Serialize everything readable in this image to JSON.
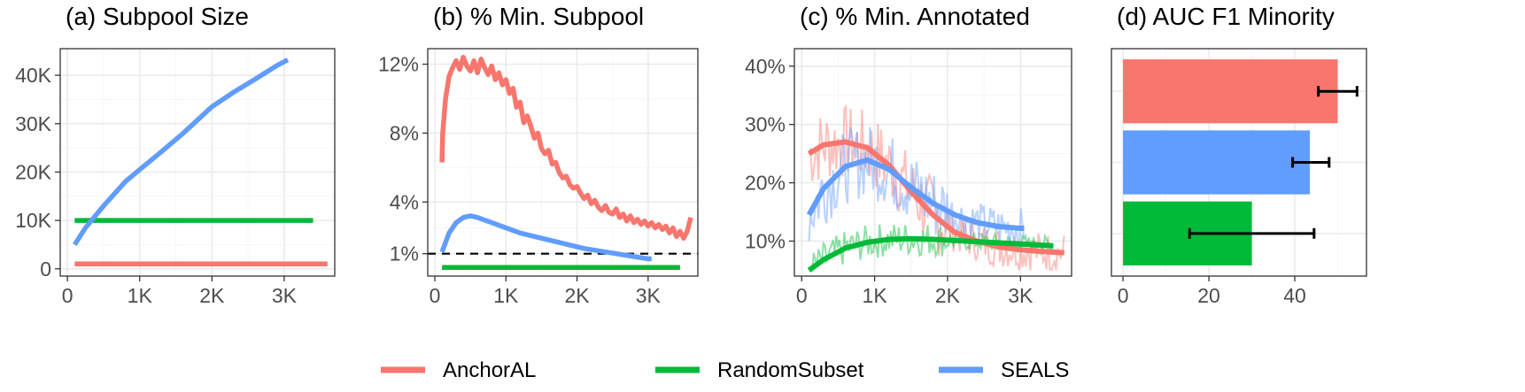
{
  "colors": {
    "AnchorAL": "#F8766D",
    "RandomSubset": "#00BA38",
    "SEALS": "#619CFF"
  },
  "legend": {
    "position": "bottom",
    "items": [
      "AnchorAL",
      "RandomSubset",
      "SEALS"
    ]
  },
  "chart_data": [
    {
      "id": "a",
      "type": "line",
      "title": "(a) Subpool Size",
      "xlim": [
        -100,
        3700
      ],
      "ylim": [
        -1500,
        45500
      ],
      "xticks": [
        0,
        1000,
        2000,
        3000
      ],
      "xtick_labels": [
        "0",
        "1K",
        "2K",
        "3K"
      ],
      "yticks": [
        0,
        10000,
        20000,
        30000,
        40000
      ],
      "ytick_labels": [
        "0",
        "10K",
        "20K",
        "30K",
        "40K"
      ],
      "grid": true,
      "series": [
        {
          "name": "AnchorAL",
          "x": [
            100,
            3600
          ],
          "y": [
            1000,
            1000
          ]
        },
        {
          "name": "RandomSubset",
          "x": [
            100,
            3400
          ],
          "y": [
            10000,
            10000
          ]
        },
        {
          "name": "SEALS",
          "x": [
            100,
            250,
            500,
            800,
            1000,
            1300,
            1600,
            2000,
            2300,
            2600,
            2900,
            3050
          ],
          "y": [
            5000,
            8500,
            13000,
            18000,
            20500,
            24200,
            28000,
            33500,
            36500,
            39200,
            42000,
            43200
          ]
        }
      ]
    },
    {
      "id": "b",
      "type": "line",
      "title": "(b) % Min. Subpool",
      "xlim": [
        -100,
        3700
      ],
      "ylim": [
        -0.3,
        12.9
      ],
      "xticks": [
        0,
        1000,
        2000,
        3000
      ],
      "xtick_labels": [
        "0",
        "1K",
        "2K",
        "3K"
      ],
      "yticks": [
        1,
        4,
        8,
        12
      ],
      "ytick_labels": [
        "1%",
        "4%",
        "8%",
        "12%"
      ],
      "reference_line": {
        "y": 1,
        "style": "dashed"
      },
      "grid": true,
      "series": [
        {
          "name": "AnchorAL",
          "x": [
            100,
            110,
            150,
            200,
            250,
            300,
            350,
            400,
            450,
            500,
            550,
            600,
            650,
            700,
            750,
            800,
            850,
            900,
            950,
            1000,
            1050,
            1100,
            1150,
            1200,
            1250,
            1300,
            1350,
            1400,
            1450,
            1500,
            1550,
            1600,
            1650,
            1700,
            1750,
            1800,
            1850,
            1900,
            1950,
            2000,
            2050,
            2100,
            2150,
            2200,
            2250,
            2300,
            2350,
            2400,
            2450,
            2500,
            2550,
            2600,
            2650,
            2700,
            2750,
            2800,
            2850,
            2900,
            2950,
            3000,
            3050,
            3100,
            3150,
            3200,
            3250,
            3300,
            3350,
            3400,
            3450,
            3500,
            3550,
            3600
          ],
          "y": [
            6.3,
            8.0,
            10.0,
            11.3,
            11.8,
            12.2,
            11.7,
            12.4,
            11.9,
            11.6,
            12.2,
            11.5,
            12.3,
            11.8,
            11.4,
            11.9,
            11.1,
            11.5,
            10.8,
            11.1,
            10.3,
            10.6,
            9.5,
            9.8,
            8.6,
            9.0,
            8.4,
            7.7,
            8.0,
            7.1,
            6.8,
            7.0,
            6.2,
            6.3,
            5.7,
            5.4,
            5.5,
            5.0,
            4.8,
            4.9,
            4.5,
            4.2,
            4.4,
            3.9,
            4.1,
            3.7,
            3.5,
            3.8,
            3.4,
            3.3,
            3.6,
            3.1,
            3.3,
            2.9,
            3.2,
            2.8,
            3.0,
            2.7,
            2.9,
            2.6,
            2.8,
            2.5,
            2.7,
            2.4,
            2.6,
            2.2,
            2.5,
            2.0,
            2.3,
            1.9,
            2.3,
            3.1
          ]
        },
        {
          "name": "RandomSubset",
          "x": [
            100,
            3450
          ],
          "y": [
            0.2,
            0.2
          ]
        },
        {
          "name": "SEALS",
          "x": [
            100,
            200,
            300,
            400,
            500,
            600,
            800,
            1000,
            1200,
            1500,
            1800,
            2100,
            2400,
            2700,
            3000,
            3050
          ],
          "y": [
            1.1,
            2.2,
            2.8,
            3.1,
            3.2,
            3.1,
            2.8,
            2.5,
            2.2,
            1.9,
            1.6,
            1.3,
            1.1,
            0.9,
            0.7,
            0.7
          ]
        }
      ]
    },
    {
      "id": "c",
      "type": "line",
      "title": "(c) % Min. Annotated",
      "xlim": [
        -100,
        3700
      ],
      "ylim": [
        4,
        43
      ],
      "xticks": [
        0,
        1000,
        2000,
        3000
      ],
      "xtick_labels": [
        "0",
        "1K",
        "2K",
        "3K"
      ],
      "yticks": [
        10,
        20,
        30,
        40
      ],
      "ytick_labels": [
        "10%",
        "20%",
        "30%",
        "40%"
      ],
      "grid": true,
      "series": [
        {
          "name": "AnchorAL",
          "x": [
            100,
            300,
            600,
            900,
            1200,
            1500,
            1800,
            2100,
            2400,
            2700,
            3000,
            3300,
            3600
          ],
          "y": [
            25,
            26.5,
            27,
            26,
            23,
            18.5,
            14.5,
            11.5,
            10,
            9,
            8.5,
            8.2,
            8
          ]
        },
        {
          "name": "RandomSubset",
          "x": [
            100,
            300,
            600,
            900,
            1200,
            1500,
            1800,
            2100,
            2400,
            2700,
            3000,
            3300,
            3450
          ],
          "y": [
            5,
            6.8,
            8.8,
            9.8,
            10.3,
            10.4,
            10.3,
            10.1,
            9.9,
            9.7,
            9.5,
            9.3,
            9.2
          ]
        },
        {
          "name": "SEALS",
          "x": [
            100,
            300,
            600,
            900,
            1200,
            1500,
            1800,
            2100,
            2400,
            2700,
            3000,
            3050
          ],
          "y": [
            14.5,
            19,
            22.8,
            23.9,
            22.3,
            19.2,
            16.5,
            14.5,
            13.2,
            12.5,
            12.2,
            12.2
          ]
        }
      ]
    },
    {
      "id": "d",
      "type": "bar",
      "orientation": "horizontal",
      "title": "(d) AUC F1 Minority",
      "xlim": [
        -2.7,
        56.7
      ],
      "xticks": [
        0,
        20,
        40
      ],
      "xtick_labels": [
        "0",
        "20",
        "40"
      ],
      "grid": true,
      "categories": [
        "AnchorAL",
        "SEALS",
        "RandomSubset"
      ],
      "values": [
        50,
        43.5,
        30
      ],
      "error": [
        [
          45.5,
          54.5
        ],
        [
          39.5,
          48
        ],
        [
          15.5,
          44.5
        ]
      ]
    }
  ]
}
